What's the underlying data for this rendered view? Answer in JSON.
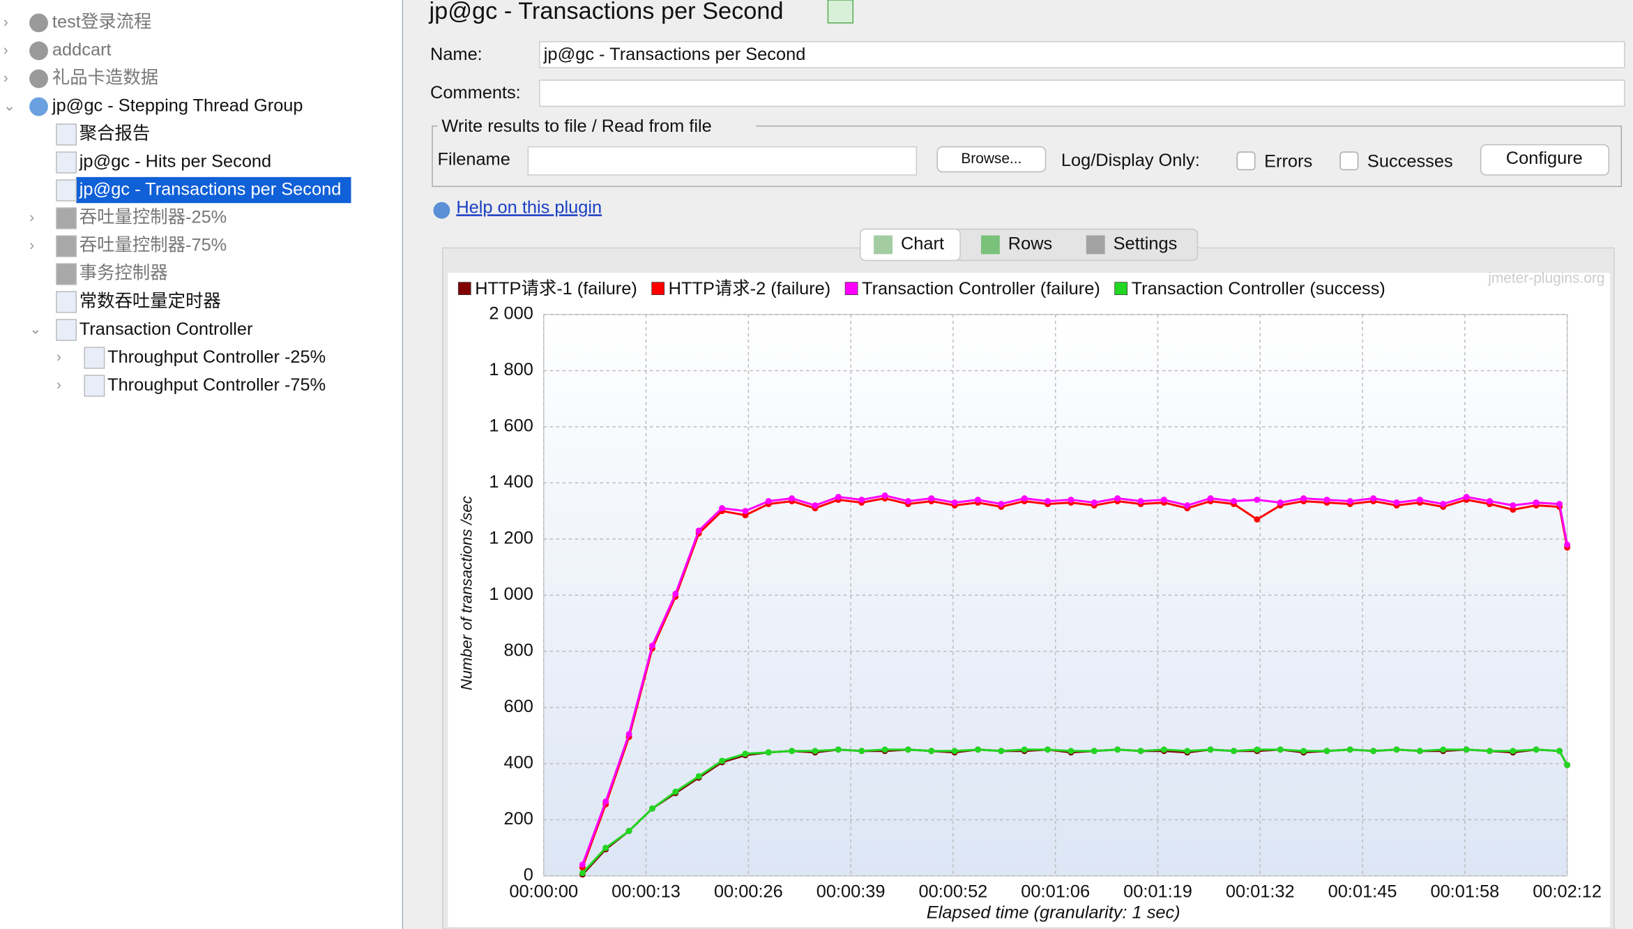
{
  "tree": [
    "test登录流程",
    "addcart",
    "礼品卡造数据",
    "jp@gc - Stepping Thread Group",
    "聚合报告",
    "jp@gc - Hits per Second",
    "jp@gc - Transactions per Second",
    "吞吐量控制器-25%",
    "吞吐量控制器-75%",
    "事务控制器",
    "常数吞吐量定时器",
    "Transaction Controller",
    "Throughput Controller -25%",
    "Throughput Controller -75%"
  ],
  "editor": {
    "title": "jp@gc - Transactions per Second",
    "name_label": "Name:",
    "name_value": "jp@gc - Transactions per Second",
    "comments_label": "Comments:",
    "file_group_title": "Write results to file / Read from file",
    "filename_label": "Filename",
    "browse_button": "Browse...",
    "log_display_label": "Log/Display Only:",
    "errors_label": "Errors",
    "successes_label": "Successes",
    "configure_button": "Configure",
    "help_link": "Help on this plugin"
  },
  "tabs": [
    "Chart",
    "Rows",
    "Settings"
  ],
  "chart_data": {
    "type": "line",
    "watermark": "jmeter-plugins.org",
    "y_label": "Number of transactions /sec",
    "x_label": "Elapsed time (granularity: 1 sec)",
    "x": [
      5,
      8,
      11,
      14,
      17,
      20,
      23,
      26,
      29,
      32,
      35,
      38,
      41,
      44,
      47,
      50,
      53,
      56,
      59,
      62,
      65,
      68,
      71,
      74,
      77,
      80,
      83,
      86,
      89,
      92,
      95,
      98,
      101,
      104,
      107,
      110,
      113,
      116,
      119,
      122,
      125,
      128,
      131,
      132
    ],
    "series": [
      {
        "name": "HTTP请求-1 (failure)",
        "color": "#800000",
        "values": [
          5,
          95,
          160,
          240,
          295,
          350,
          405,
          430,
          440,
          445,
          440,
          450,
          445,
          445,
          450,
          445,
          440,
          450,
          445,
          445,
          450,
          440,
          445,
          450,
          445,
          445,
          440,
          450,
          445,
          445,
          450,
          440,
          445,
          450,
          445,
          450,
          445,
          445,
          450,
          445,
          440,
          450,
          445,
          395
        ]
      },
      {
        "name": "HTTP请求-2 (failure)",
        "color": "#ff0000",
        "values": [
          30,
          255,
          495,
          810,
          995,
          1220,
          1300,
          1285,
          1325,
          1335,
          1310,
          1340,
          1330,
          1345,
          1325,
          1335,
          1320,
          1330,
          1315,
          1335,
          1325,
          1330,
          1320,
          1335,
          1325,
          1330,
          1310,
          1335,
          1325,
          1270,
          1320,
          1335,
          1330,
          1325,
          1335,
          1320,
          1330,
          1315,
          1340,
          1325,
          1305,
          1320,
          1315,
          1170
        ]
      },
      {
        "name": "Transaction Controller  (failure)",
        "color": "#ff00ff",
        "values": [
          40,
          265,
          505,
          820,
          1005,
          1230,
          1310,
          1300,
          1335,
          1345,
          1320,
          1350,
          1340,
          1355,
          1335,
          1345,
          1330,
          1340,
          1325,
          1345,
          1335,
          1340,
          1330,
          1345,
          1335,
          1340,
          1320,
          1345,
          1335,
          1340,
          1330,
          1345,
          1340,
          1335,
          1345,
          1330,
          1340,
          1325,
          1350,
          1335,
          1320,
          1330,
          1325,
          1180
        ]
      },
      {
        "name": "Transaction Controller  (success)",
        "color": "#22d622",
        "values": [
          10,
          100,
          160,
          240,
          300,
          355,
          410,
          435,
          440,
          445,
          445,
          450,
          445,
          450,
          450,
          445,
          445,
          450,
          445,
          450,
          450,
          445,
          445,
          450,
          445,
          450,
          445,
          450,
          445,
          450,
          450,
          445,
          445,
          450,
          445,
          450,
          445,
          450,
          450,
          445,
          445,
          450,
          445,
          395
        ]
      }
    ],
    "xlim": [
      0,
      132
    ],
    "ylim": [
      0,
      2000
    ],
    "xticks": [
      {
        "value": 0,
        "label": "00:00:00"
      },
      {
        "value": 13.2,
        "label": "00:00:13"
      },
      {
        "value": 26.4,
        "label": "00:00:26"
      },
      {
        "value": 39.6,
        "label": "00:00:39"
      },
      {
        "value": 52.8,
        "label": "00:00:52"
      },
      {
        "value": 66,
        "label": "00:01:06"
      },
      {
        "value": 79.2,
        "label": "00:01:19"
      },
      {
        "value": 92.4,
        "label": "00:01:32"
      },
      {
        "value": 105.6,
        "label": "00:01:45"
      },
      {
        "value": 118.8,
        "label": "00:01:58"
      },
      {
        "value": 132,
        "label": "00:02:12"
      }
    ],
    "yticks": [
      0,
      200,
      400,
      600,
      800,
      {
        "value": 1000,
        "label": "1 000"
      },
      {
        "value": 1200,
        "label": "1 200"
      },
      {
        "value": 1400,
        "label": "1 400"
      },
      {
        "value": 1600,
        "label": "1 600"
      },
      {
        "value": 1800,
        "label": "1 800"
      },
      {
        "value": 2000,
        "label": "2 000"
      }
    ],
    "grid": true
  }
}
